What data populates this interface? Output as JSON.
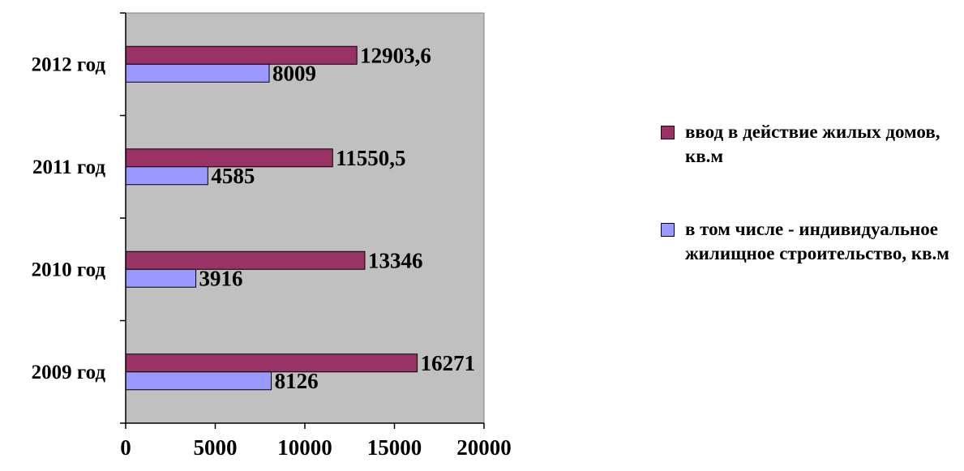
{
  "chart_data": {
    "type": "bar",
    "orientation": "horizontal",
    "categories": [
      "2009 год",
      "2010 год",
      "2011 год",
      "2012 год"
    ],
    "series": [
      {
        "name": "ввод в действие жилых домов, кв.м",
        "values": [
          16271,
          13346,
          11550.5,
          12903.6
        ],
        "labels": [
          "16271",
          "13346",
          "11550,5",
          "12903,6"
        ],
        "color": "#993366"
      },
      {
        "name": "в том числе - индивидуальное жилищное строительство, кв.м",
        "values": [
          8126,
          3916,
          4585,
          8009
        ],
        "labels": [
          "8126",
          "3916",
          "4585",
          "8009"
        ],
        "color": "#9999ff"
      }
    ],
    "xlim": [
      0,
      20000
    ],
    "x_ticks": [
      "0",
      "5000",
      "10000",
      "15000",
      "20000"
    ],
    "plot_background": "#c0c0c0",
    "grid": false,
    "legend_position": "right"
  }
}
